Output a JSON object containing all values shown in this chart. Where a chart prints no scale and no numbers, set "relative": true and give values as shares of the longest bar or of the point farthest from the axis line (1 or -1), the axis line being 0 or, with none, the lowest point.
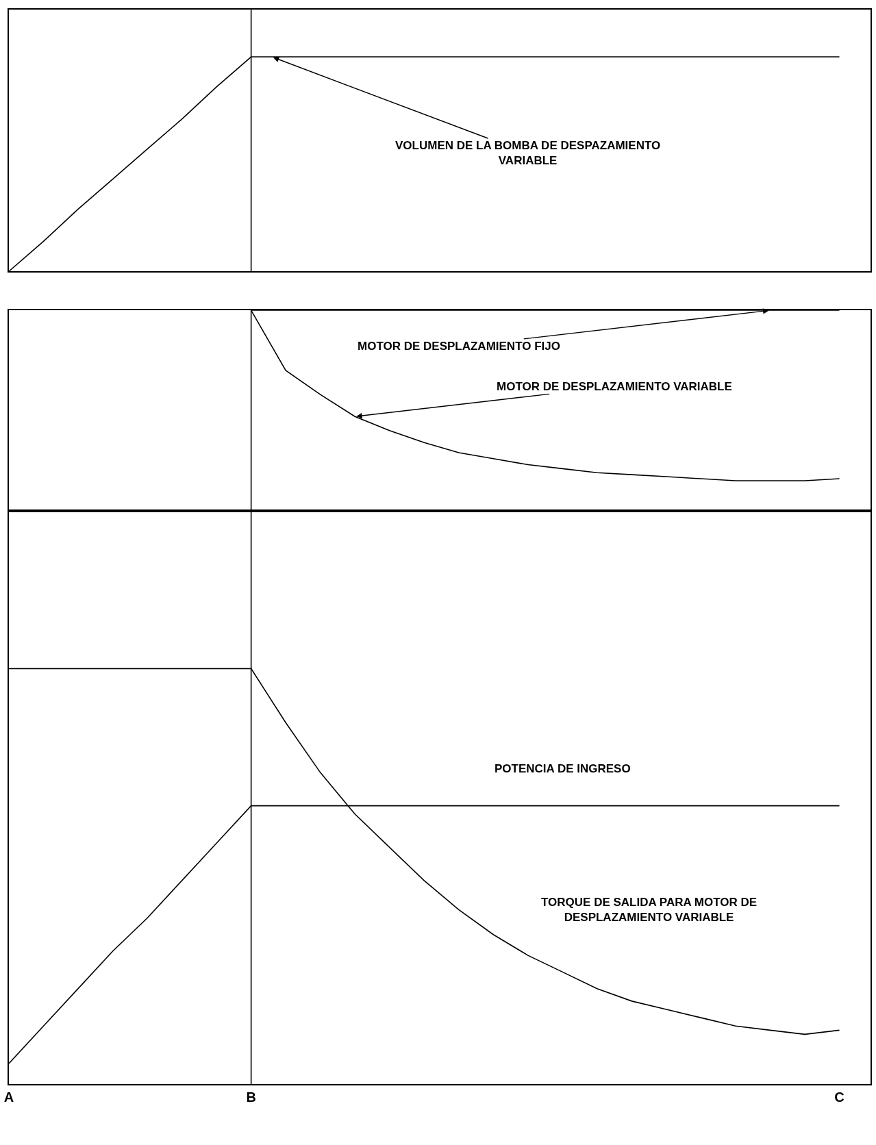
{
  "chart_data": [
    {
      "type": "line",
      "relative": true,
      "tick_labels": false,
      "categories": [
        "A",
        null,
        null,
        null,
        null,
        null,
        null,
        "B",
        null,
        null,
        null,
        null,
        null,
        null,
        null,
        null,
        null,
        null,
        null,
        null,
        null,
        null,
        null,
        null,
        "C"
      ],
      "ref_lines": [
        {
          "axis": "x",
          "value": "B",
          "color": "#000000"
        }
      ],
      "series": [
        {
          "name": "VOLUMEN DE LA BOMBA DE DESPAZAMIENTO VARIABLE",
          "color": "#000000",
          "values": [
            0,
            0.14,
            0.29,
            0.43,
            0.57,
            0.71,
            0.86,
            1,
            1,
            1,
            1,
            1,
            1,
            1,
            1,
            1,
            1,
            1,
            1,
            1,
            1,
            1,
            1,
            1,
            1
          ]
        }
      ]
    },
    {
      "type": "line",
      "relative": true,
      "tick_labels": false,
      "categories": [
        "A",
        null,
        null,
        null,
        null,
        null,
        null,
        "B",
        null,
        null,
        null,
        null,
        null,
        null,
        null,
        null,
        null,
        null,
        null,
        null,
        null,
        null,
        null,
        null,
        "C"
      ],
      "ref_lines": [
        {
          "axis": "x",
          "value": "B",
          "color": "#000000"
        }
      ],
      "series": [
        {
          "name": "MOTOR DE DESPLAZAMIENTO FIJO",
          "color": "#000000",
          "values": [
            null,
            null,
            null,
            null,
            null,
            null,
            null,
            1,
            1,
            1,
            1,
            1,
            1,
            1,
            1,
            1,
            1,
            1,
            1,
            1,
            1,
            1,
            1,
            1,
            1
          ]
        },
        {
          "name": "MOTOR DE DESPLAZAMIENTO VARIABLE",
          "color": "#000000",
          "values": [
            null,
            null,
            null,
            null,
            null,
            null,
            null,
            1,
            0.7,
            0.58,
            0.47,
            0.4,
            0.34,
            0.29,
            0.26,
            0.23,
            0.21,
            0.19,
            0.18,
            0.17,
            0.16,
            0.15,
            0.15,
            0.15,
            0.16
          ]
        }
      ]
    },
    {
      "type": "line",
      "relative": true,
      "tick_labels": "x",
      "categories": [
        "A",
        null,
        null,
        null,
        null,
        null,
        null,
        "B",
        null,
        null,
        null,
        null,
        null,
        null,
        null,
        null,
        null,
        null,
        null,
        null,
        null,
        null,
        null,
        null,
        "C"
      ],
      "ref_lines": [
        {
          "axis": "x",
          "value": "B",
          "color": "#000000"
        }
      ],
      "series": [
        {
          "name": "POTENCIA DE INGRESO",
          "color": "#000000",
          "values": [
            0.05,
            0.14,
            0.23,
            0.32,
            0.4,
            0.49,
            0.58,
            0.67,
            0.67,
            0.67,
            0.67,
            0.67,
            0.67,
            0.67,
            0.67,
            0.67,
            0.67,
            0.67,
            0.67,
            0.67,
            0.67,
            0.67,
            0.67,
            0.67,
            0.67
          ]
        },
        {
          "name": "TORQUE DE SALIDA PARA MOTOR DE DESPLAZAMIENTO VARIABLE",
          "color": "#000000",
          "values": [
            1,
            1,
            1,
            1,
            1,
            1,
            1,
            1,
            0.87,
            0.75,
            0.65,
            0.57,
            0.49,
            0.42,
            0.36,
            0.31,
            0.27,
            0.23,
            0.2,
            0.18,
            0.16,
            0.14,
            0.13,
            0.12,
            0.13
          ]
        }
      ]
    }
  ]
}
